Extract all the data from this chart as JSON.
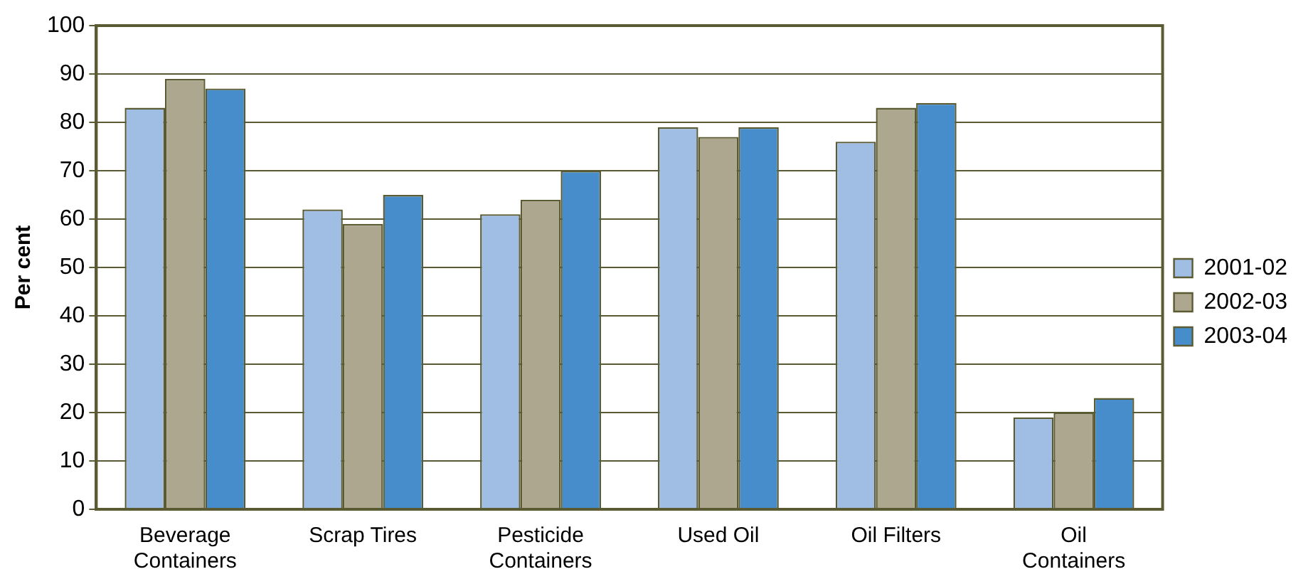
{
  "chart_data": {
    "type": "bar",
    "ylabel": "Per cent",
    "categories": [
      "Beverage Containers",
      "Scrap Tires",
      "Pesticide Containers",
      "Used Oil",
      "Oil Filters",
      "Oil Containers"
    ],
    "series": [
      {
        "name": "2001-02",
        "color": "#a0bde3",
        "values": [
          83,
          62,
          61,
          79,
          76,
          19
        ]
      },
      {
        "name": "2002-03",
        "color": "#aca78e",
        "values": [
          89,
          59,
          64,
          77,
          83,
          20
        ]
      },
      {
        "name": "2003-04",
        "color": "#478dcb",
        "values": [
          87,
          65,
          70,
          79,
          84,
          23
        ]
      }
    ],
    "ylim": [
      0,
      100
    ],
    "yticks": [
      0,
      10,
      20,
      30,
      40,
      50,
      60,
      70,
      80,
      90,
      100
    ],
    "grid": "y",
    "legend": "right"
  }
}
